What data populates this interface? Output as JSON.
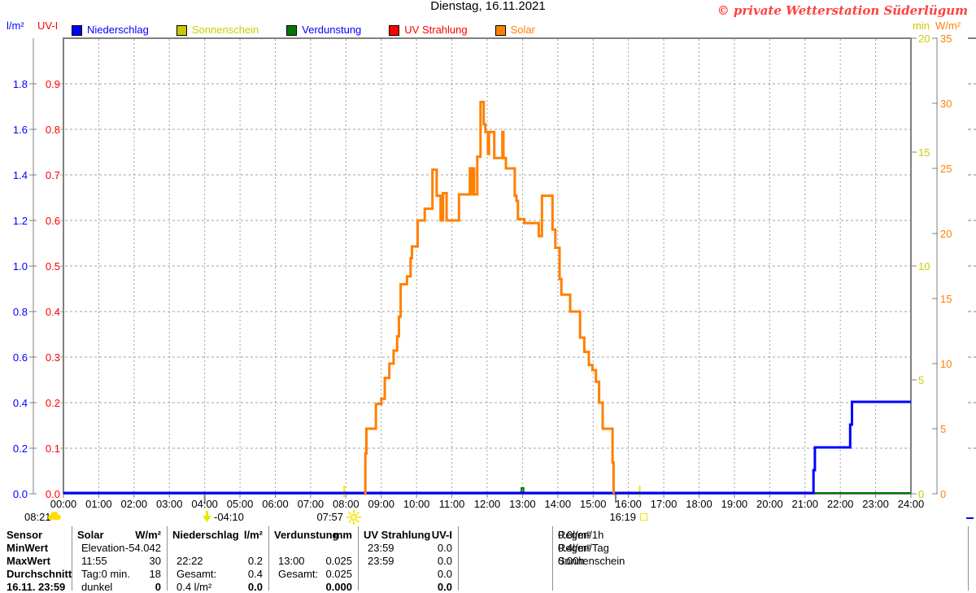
{
  "title": "Dienstag, 16.11.2021",
  "copyright": "© private Wetterstation Süderlügum",
  "colors": {
    "rain": "#0000ff",
    "sunshine_text": "#cccc00",
    "sunshine_swatch": "#c8c800",
    "evaporation": "#007800",
    "uv": "#ff0000",
    "solar": "#ff8000",
    "frame": "#808080",
    "grid": "#a0a0a0",
    "copyright": "#ff4040",
    "marker_yellow": "#e8e800"
  },
  "legend": {
    "items": [
      {
        "label": "Niederschlag",
        "swatch": "#0000ff",
        "text_color": "#0000ff"
      },
      {
        "label": "Sonnenschein",
        "swatch": "#c8c800",
        "text_color": "#cccc00"
      },
      {
        "label": "Verdunstung",
        "swatch": "#007800",
        "text_color": "#0000ff"
      },
      {
        "label": "UV Strahlung",
        "swatch": "#ff0000",
        "text_color": "#ff0000"
      },
      {
        "label": "Solar",
        "swatch": "#ff8000",
        "text_color": "#ff8000"
      }
    ]
  },
  "axes": {
    "left_rain": {
      "label": "l/m²",
      "color": "#0000ff",
      "max": 2.0,
      "ticks": [
        "0.0",
        "0.2",
        "0.4",
        "0.6",
        "0.8",
        "1.0",
        "1.2",
        "1.4",
        "1.6",
        "1.8"
      ]
    },
    "left_uv": {
      "label": "UV-I",
      "color": "#ff0000",
      "max": 1.0,
      "ticks": [
        "0.0",
        "0.1",
        "0.2",
        "0.3",
        "0.4",
        "0.5",
        "0.6",
        "0.7",
        "0.8",
        "0.9"
      ]
    },
    "right_sunshine": {
      "label": "min",
      "color": "#cccc00",
      "max": 20,
      "ticks": [
        "0",
        "5",
        "10",
        "15",
        "20"
      ]
    },
    "right_solar": {
      "label": "W/m²",
      "color": "#ff8000",
      "max": 35,
      "ticks": [
        "0",
        "5",
        "10",
        "15",
        "20",
        "25",
        "30",
        "35"
      ]
    }
  },
  "x_axis": {
    "hours": [
      "00:00",
      "01:00",
      "02:00",
      "03:00",
      "04:00",
      "05:00",
      "06:00",
      "07:00",
      "08:00",
      "09:00",
      "10:00",
      "11:00",
      "12:00",
      "13:00",
      "14:00",
      "15:00",
      "16:00",
      "17:00",
      "18:00",
      "19:00",
      "20:00",
      "21:00",
      "22:00",
      "23:00",
      "24:00"
    ]
  },
  "markers": {
    "cloud_time": "08:21",
    "arrow_time": "-04:10",
    "sunrise_time": "07:57",
    "sunset_time": "16:19"
  },
  "chart_data": {
    "type": "line",
    "title": "Dienstag, 16.11.2021",
    "x_unit": "hour",
    "x_range": [
      0,
      24
    ],
    "grid": true,
    "series": [
      {
        "name": "Solar",
        "unit": "W/m²",
        "axis_max": 35,
        "color": "#ff8000",
        "step": true,
        "points": [
          [
            8.53,
            0
          ],
          [
            8.55,
            3.1
          ],
          [
            8.58,
            5.0
          ],
          [
            8.85,
            6.9
          ],
          [
            9.0,
            7.3
          ],
          [
            9.1,
            8.9
          ],
          [
            9.23,
            10.0
          ],
          [
            9.35,
            11.0
          ],
          [
            9.45,
            12.1
          ],
          [
            9.5,
            13.6
          ],
          [
            9.55,
            16.1
          ],
          [
            9.73,
            16.7
          ],
          [
            9.83,
            18.1
          ],
          [
            9.87,
            19.0
          ],
          [
            10.03,
            21.0
          ],
          [
            10.23,
            21.9
          ],
          [
            10.45,
            24.9
          ],
          [
            10.57,
            22.9
          ],
          [
            10.68,
            21.0
          ],
          [
            10.75,
            23.1
          ],
          [
            10.85,
            21.0
          ],
          [
            11.2,
            23.0
          ],
          [
            11.51,
            25.0
          ],
          [
            11.54,
            23.0
          ],
          [
            11.6,
            25.0
          ],
          [
            11.63,
            23.0
          ],
          [
            11.72,
            25.9
          ],
          [
            11.81,
            30.1
          ],
          [
            11.9,
            28.4
          ],
          [
            11.95,
            27.8
          ],
          [
            12.02,
            26.1
          ],
          [
            12.05,
            27.8
          ],
          [
            12.2,
            25.8
          ],
          [
            12.43,
            27.8
          ],
          [
            12.46,
            25.8
          ],
          [
            12.53,
            25.0
          ],
          [
            12.78,
            22.9
          ],
          [
            12.83,
            22.5
          ],
          [
            12.87,
            21.1
          ],
          [
            13.05,
            20.8
          ],
          [
            13.46,
            19.8
          ],
          [
            13.55,
            22.9
          ],
          [
            13.85,
            20.3
          ],
          [
            13.93,
            18.9
          ],
          [
            14.05,
            16.5
          ],
          [
            14.1,
            15.3
          ],
          [
            14.35,
            14.0
          ],
          [
            14.63,
            12.0
          ],
          [
            14.75,
            10.9
          ],
          [
            14.88,
            9.9
          ],
          [
            14.98,
            9.5
          ],
          [
            15.08,
            8.6
          ],
          [
            15.17,
            7.0
          ],
          [
            15.27,
            5.0
          ],
          [
            15.55,
            2.4
          ],
          [
            15.58,
            0
          ]
        ],
        "max": {
          "time": "11:55",
          "value": 30
        },
        "avg": 18
      },
      {
        "name": "Niederschlag",
        "unit": "l/m²",
        "axis_max": 2.0,
        "color": "#0000ff",
        "step": true,
        "points": [
          [
            0,
            0
          ],
          [
            21.24,
            0.1
          ],
          [
            21.28,
            0.2
          ],
          [
            22.28,
            0.3
          ],
          [
            22.33,
            0.4
          ],
          [
            24,
            0.4
          ]
        ],
        "max": {
          "time": "22:22",
          "value": 0.2
        },
        "total": 0.4
      },
      {
        "name": "Verdunstung",
        "unit": "mm",
        "color": "#007800",
        "step": true,
        "points": [
          [
            0,
            0
          ],
          [
            12.97,
            0.025
          ],
          [
            13.03,
            0
          ],
          [
            24,
            0
          ]
        ],
        "max": {
          "time": "13:00",
          "value": 0.025
        },
        "total": 0.025
      },
      {
        "name": "Sonnenschein",
        "unit": "min",
        "axis_max": 20,
        "color": "#c8c800",
        "points": [
          [
            0,
            0
          ],
          [
            24,
            0
          ]
        ],
        "total": "0:00h"
      },
      {
        "name": "UV Strahlung",
        "unit": "UV-I",
        "axis_max": 1.0,
        "color": "#ff0000",
        "points": [
          [
            0,
            0
          ],
          [
            24,
            0
          ]
        ],
        "max": {
          "time": "23:59",
          "value": 0.0
        }
      }
    ]
  },
  "table": {
    "row_labels": [
      "Sensor",
      "MinWert",
      "MaxWert",
      "Durchschnitt",
      "16.11. 23:59"
    ],
    "columns": [
      {
        "name": "Solar",
        "unit": "W/m²",
        "rows": [
          [
            "Elevation",
            "-54.042"
          ],
          [
            "11:55",
            "30"
          ],
          [
            "Tag:0 min.",
            "18"
          ],
          [
            "dunkel",
            "0"
          ]
        ]
      },
      {
        "name": "Niederschlag",
        "unit": "l/m²",
        "rows": [
          [
            "",
            ""
          ],
          [
            "22:22",
            "0.2"
          ],
          [
            "Gesamt:",
            "0.4"
          ],
          [
            "0.4 l/m²",
            "0.0"
          ]
        ]
      },
      {
        "name": "Verdunstung",
        "unit": "mm",
        "rows": [
          [
            "",
            ""
          ],
          [
            "13:00",
            "0.025"
          ],
          [
            "Gesamt:",
            "0.025"
          ],
          [
            "",
            "0.000"
          ]
        ]
      },
      {
        "name": "UV Strahlung",
        "unit": "UV-I",
        "rows": [
          [
            "23:59",
            "0.0"
          ],
          [
            "23:59",
            "0.0"
          ],
          [
            "",
            "0.0"
          ],
          [
            "",
            "0.0"
          ]
        ]
      }
    ],
    "extra": [
      [
        "Regen/1h",
        "0.0l/m²"
      ],
      [
        "Regen/Tag",
        "0.4l/m²"
      ],
      [
        "Sonnenschein",
        "0:00h"
      ]
    ]
  }
}
